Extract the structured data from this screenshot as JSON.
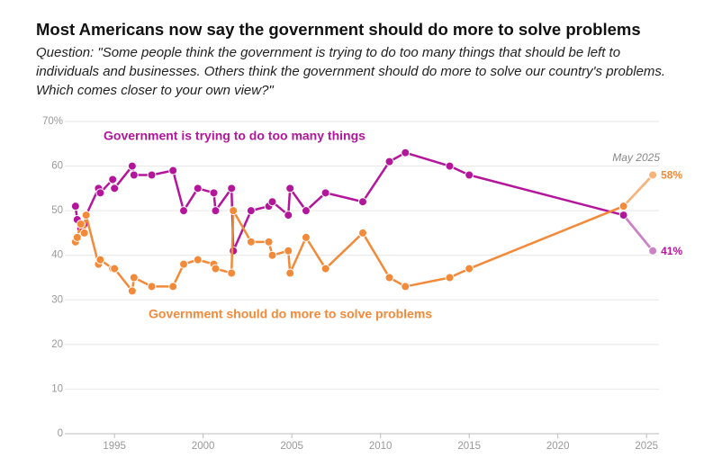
{
  "chart_data": {
    "type": "line",
    "title": "Most Americans now say the government should do more to solve problems",
    "subtitle": "Question: \"Some people think the government is trying to do too many things that should be left to individuals and businesses. Others think the government should do more to solve our country's problems. Which comes closer to your own view?\"",
    "annotation": "May 2025",
    "x": [
      1992.8,
      1992.9,
      1993.1,
      1993.3,
      1993.4,
      1994.1,
      1994.2,
      1994.9,
      1995.0,
      1996.0,
      1996.1,
      1997.1,
      1998.3,
      1998.9,
      1999.7,
      2000.6,
      2000.7,
      2001.6,
      2001.7,
      2002.7,
      2003.7,
      2003.9,
      2004.8,
      2004.9,
      2005.8,
      2006.9,
      2009.0,
      2010.5,
      2011.4,
      2013.9,
      2015.0,
      2023.7,
      2025.35
    ],
    "series": [
      {
        "name": "Government is trying to do too many things",
        "color": "#b4169b",
        "recent_color": "#cc82c6",
        "values": [
          51,
          48,
          46,
          47,
          49,
          55,
          54,
          57,
          55,
          60,
          58,
          58,
          59,
          50,
          55,
          54,
          50,
          55,
          41,
          50,
          51,
          52,
          49,
          55,
          50,
          54,
          52,
          61,
          63,
          60,
          58,
          49,
          41
        ],
        "value_labels": [
          null,
          null,
          null,
          null,
          null,
          null,
          null,
          null,
          null,
          null,
          null,
          null,
          null,
          null,
          null,
          null,
          null,
          null,
          null,
          null,
          null,
          null,
          null,
          null,
          null,
          null,
          null,
          null,
          null,
          null,
          null,
          null,
          "41%"
        ]
      },
      {
        "name": "Government should do more to solve problems",
        "color": "#f28a3a",
        "recent_color": "#f7b37c",
        "values": [
          43,
          44,
          47,
          45,
          49,
          38,
          39,
          37,
          37,
          32,
          35,
          33,
          33,
          38,
          39,
          38,
          37,
          36,
          50,
          43,
          43,
          40,
          41,
          36,
          44,
          37,
          45,
          35,
          33,
          35,
          37,
          51,
          58
        ],
        "value_labels": [
          null,
          null,
          null,
          null,
          null,
          null,
          null,
          null,
          null,
          null,
          null,
          null,
          null,
          null,
          null,
          null,
          null,
          null,
          null,
          null,
          null,
          null,
          null,
          null,
          null,
          null,
          null,
          null,
          null,
          null,
          null,
          null,
          "58%"
        ]
      }
    ],
    "xlim": [
      1992.2,
      2025.7
    ],
    "xticks": [
      1995,
      2000,
      2005,
      2010,
      2015,
      2020,
      2025
    ],
    "ylim": [
      0,
      70
    ],
    "yticks": [
      0,
      10,
      20,
      30,
      40,
      50,
      60,
      {
        "value": 70,
        "label": "70%"
      }
    ],
    "grid": true
  }
}
